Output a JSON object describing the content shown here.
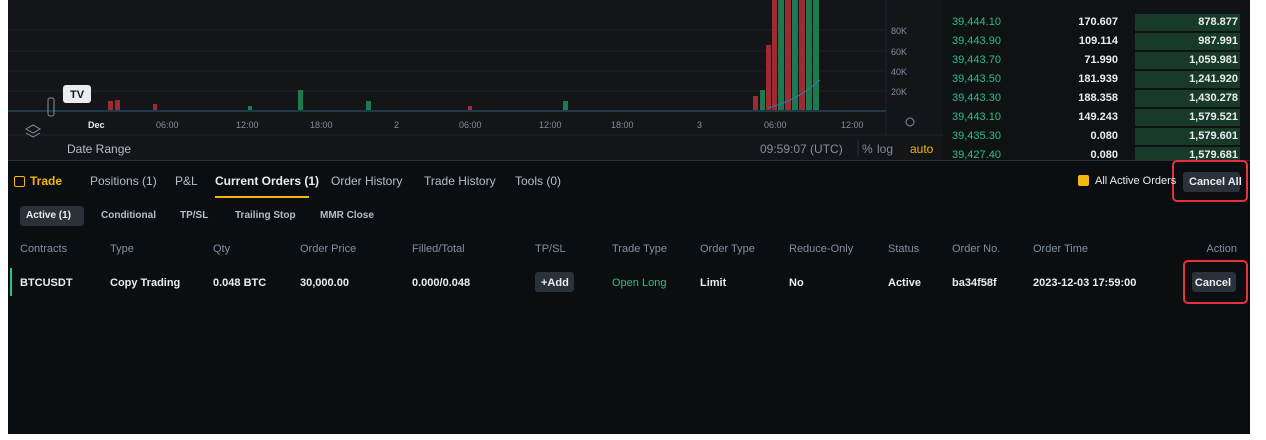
{
  "chart": {
    "y_axis_labels": [
      "80K",
      "60K",
      "40K",
      "20K"
    ],
    "x_axis_labels": [
      "Dec",
      "06:00",
      "12:00",
      "18:00",
      "2",
      "06:00",
      "12:00",
      "18:00",
      "3",
      "06:00",
      "12:00"
    ],
    "date_range": "Date Range",
    "clock": "09:59:07 (UTC)",
    "percent": "%",
    "log": "log",
    "auto": "auto"
  },
  "order_book": {
    "rows": [
      [
        "39,444.10",
        "170.607",
        "878.877"
      ],
      [
        "39,443.90",
        "109.114",
        "987.991"
      ],
      [
        "39,443.70",
        "71.990",
        "1,059.981"
      ],
      [
        "39,443.50",
        "181.939",
        "1,241.920"
      ],
      [
        "39,443.30",
        "188.358",
        "1,430.278"
      ],
      [
        "39,443.10",
        "149.243",
        "1,579.521"
      ],
      [
        "39,435.30",
        "0.080",
        "1,579.601"
      ],
      [
        "39,427.40",
        "0.080",
        "1,579.681"
      ]
    ]
  },
  "tabs": [
    "Trade",
    "Positions (1)",
    "P&L",
    "Current Orders (1)",
    "Order History",
    "Trade History",
    "Tools (0)"
  ],
  "all_active_orders": "All Active Orders",
  "cancel_all": "Cancel All",
  "subtabs": [
    "Active (1)",
    "Conditional",
    "TP/SL",
    "Trailing Stop",
    "MMR Close"
  ],
  "table": {
    "headers": [
      "Contracts",
      "Type",
      "Qty",
      "Order Price",
      "Filled/Total",
      "TP/SL",
      "Trade Type",
      "Order Type",
      "Reduce-Only",
      "Status",
      "Order No.",
      "Order Time",
      "Action"
    ],
    "rows": [
      [
        "BTCUSDT",
        "Copy Trading",
        "0.048 BTC",
        "30,000.00",
        "0.000/0.048",
        "+Add",
        "Open Long",
        "Limit",
        "No",
        "Active",
        "ba34f58f",
        "2023-12-03 17:59:00",
        "Cancel"
      ]
    ]
  }
}
